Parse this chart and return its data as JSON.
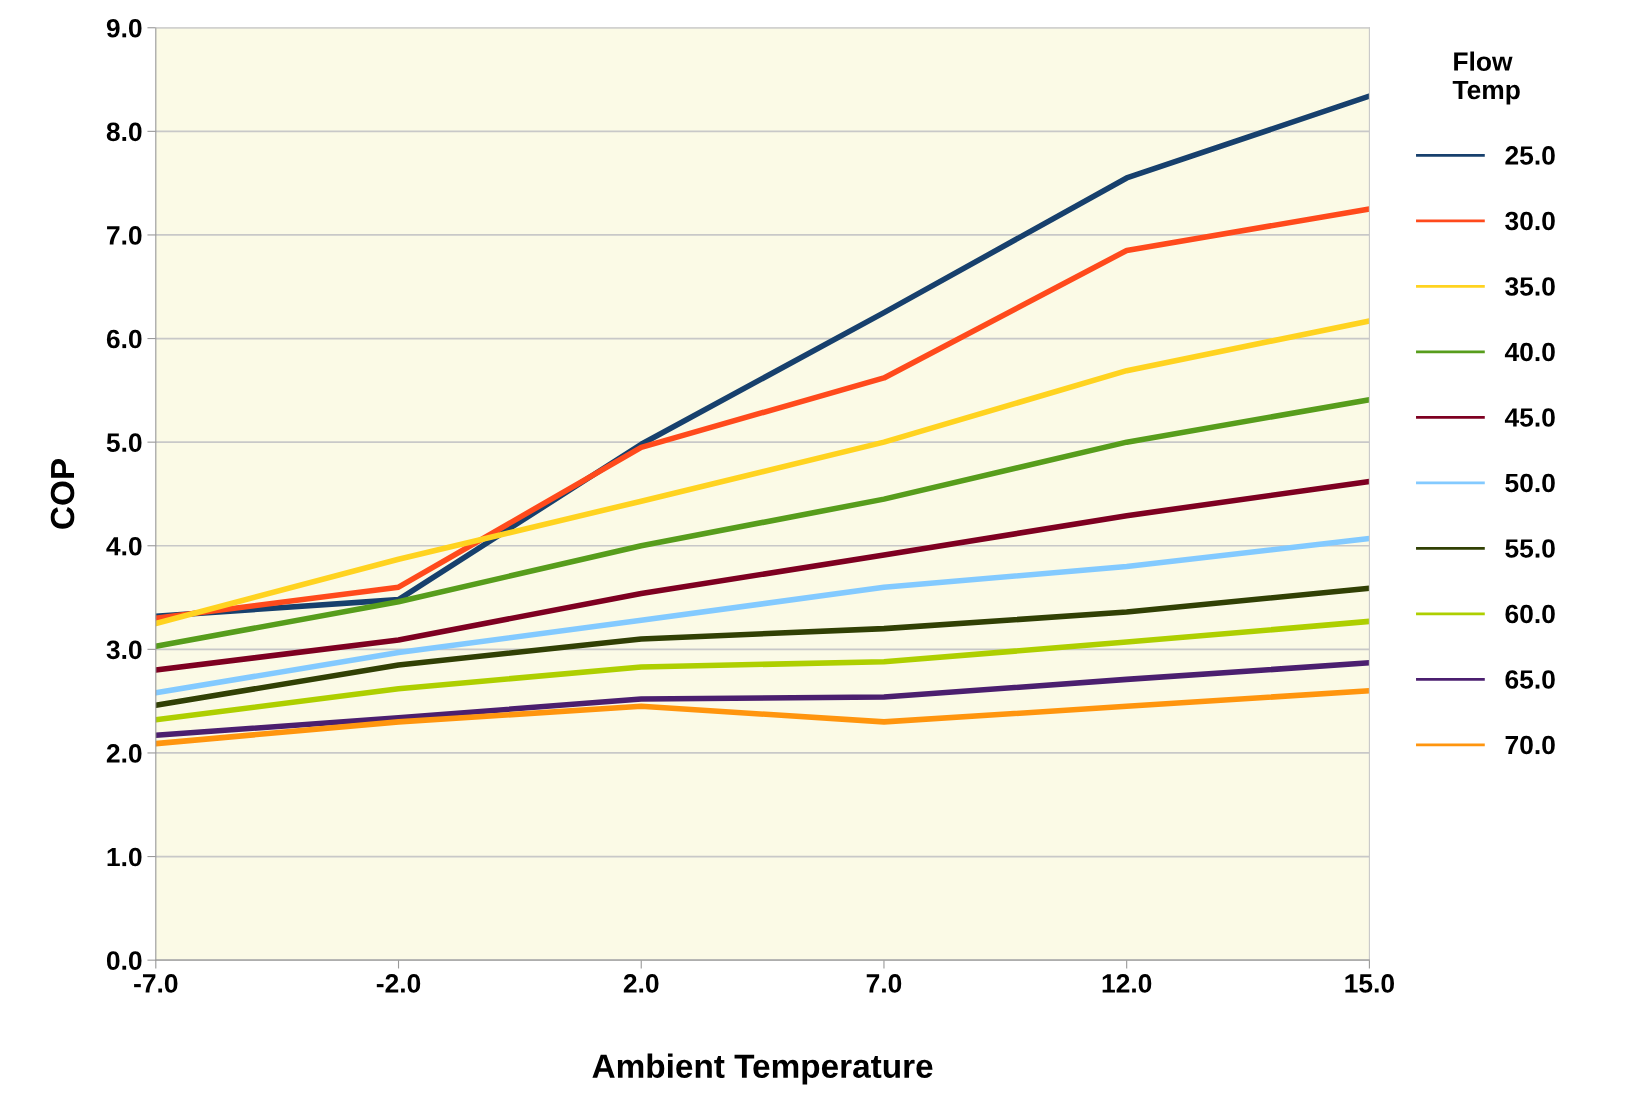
{
  "chart_data": {
    "type": "line",
    "xlabel": "Ambient Temperature",
    "ylabel": "COP",
    "legend_title": "Flow\nTemp",
    "categories": [
      "-7.0",
      "-2.0",
      "2.0",
      "7.0",
      "12.0",
      "15.0"
    ],
    "ylim": [
      0,
      9
    ],
    "yticks": [
      {
        "value": 0,
        "label": "0.0"
      },
      {
        "value": 1,
        "label": "1.0"
      },
      {
        "value": 2,
        "label": "2.0"
      },
      {
        "value": 3,
        "label": "3.0"
      },
      {
        "value": 4,
        "label": "4.0"
      },
      {
        "value": 5,
        "label": "5.0"
      },
      {
        "value": 6,
        "label": "6.0"
      },
      {
        "value": 7,
        "label": "7.0"
      },
      {
        "value": 8,
        "label": "8.0"
      },
      {
        "value": 9,
        "label": "9.0"
      }
    ],
    "grid": "y",
    "legend": "right",
    "marker": "none",
    "line_style": "solid",
    "series": [
      {
        "name": "25.0",
        "color": "#17406d",
        "values": [
          3.32,
          3.48,
          4.98,
          6.25,
          7.55,
          8.34
        ]
      },
      {
        "name": "30.0",
        "color": "#ff4a1c",
        "values": [
          3.3,
          3.6,
          4.95,
          5.62,
          6.85,
          7.25
        ]
      },
      {
        "name": "35.0",
        "color": "#ffd320",
        "values": [
          3.25,
          3.87,
          4.43,
          5.0,
          5.69,
          6.17
        ]
      },
      {
        "name": "40.0",
        "color": "#579d1c",
        "values": [
          3.03,
          3.46,
          4.0,
          4.45,
          5.0,
          5.41
        ]
      },
      {
        "name": "45.0",
        "color": "#7e0021",
        "values": [
          2.8,
          3.09,
          3.54,
          3.91,
          4.29,
          4.62
        ]
      },
      {
        "name": "50.0",
        "color": "#83caff",
        "values": [
          2.58,
          2.97,
          3.28,
          3.6,
          3.8,
          4.07
        ]
      },
      {
        "name": "55.0",
        "color": "#314004",
        "values": [
          2.46,
          2.85,
          3.1,
          3.2,
          3.36,
          3.59
        ]
      },
      {
        "name": "60.0",
        "color": "#aecf00",
        "values": [
          2.32,
          2.62,
          2.83,
          2.88,
          3.07,
          3.27
        ]
      },
      {
        "name": "65.0",
        "color": "#4b1f6f",
        "values": [
          2.17,
          2.34,
          2.52,
          2.54,
          2.71,
          2.87
        ]
      },
      {
        "name": "70.0",
        "color": "#ff950e",
        "values": [
          2.09,
          2.3,
          2.45,
          2.3,
          2.45,
          2.6
        ]
      }
    ]
  }
}
